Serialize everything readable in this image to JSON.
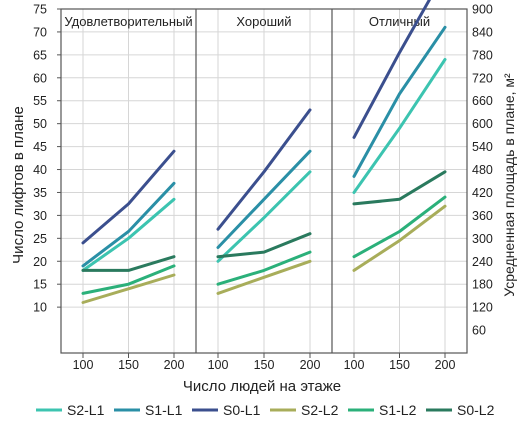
{
  "chart_data": {
    "type": "line",
    "panels": [
      "Удовлетворительный",
      "Хороший",
      "Отличный"
    ],
    "x": [
      100,
      150,
      200
    ],
    "xlabel": "Число людей на этаже",
    "ylabel": "Число лифтов в плане",
    "ylabel_right": "Усредненная площадь в плане, м²",
    "ylim": [
      0,
      75
    ],
    "ylim_right": [
      0,
      900
    ],
    "yticks": [
      10,
      15,
      20,
      25,
      30,
      35,
      40,
      45,
      50,
      55,
      60,
      65,
      70,
      75
    ],
    "yticks_right": [
      60,
      120,
      180,
      240,
      300,
      360,
      420,
      480,
      540,
      600,
      660,
      720,
      780,
      840,
      900
    ],
    "grid": true,
    "legend_position": "bottom",
    "series": [
      {
        "name": "S2-L1",
        "color": "#3cc4b0",
        "values": [
          [
            18,
            25,
            33.5
          ],
          [
            20,
            29.5,
            39.5
          ],
          [
            35,
            49,
            64
          ]
        ]
      },
      {
        "name": "S1-L1",
        "color": "#2a8fa6",
        "values": [
          [
            19,
            26.5,
            37
          ],
          [
            23,
            33.5,
            44
          ],
          [
            38.5,
            56.5,
            71
          ]
        ]
      },
      {
        "name": "S0-L1",
        "color": "#3b4f8e",
        "values": [
          [
            24,
            32.5,
            44
          ],
          [
            27,
            39.5,
            53
          ],
          [
            47,
            65.5,
            83
          ]
        ]
      },
      {
        "name": "S2-L2",
        "color": "#a8ad5a",
        "values": [
          [
            11,
            14,
            17
          ],
          [
            13,
            16.5,
            20
          ],
          [
            18,
            24.5,
            32
          ]
        ]
      },
      {
        "name": "S1-L2",
        "color": "#2bb07a",
        "values": [
          [
            13,
            15,
            19
          ],
          [
            15,
            18,
            22
          ],
          [
            21,
            26.5,
            34
          ]
        ]
      },
      {
        "name": "S0-L2",
        "color": "#2a7a5e",
        "values": [
          [
            18,
            18,
            21
          ],
          [
            21,
            22,
            26
          ],
          [
            32.5,
            33.5,
            39.5
          ]
        ]
      }
    ]
  }
}
